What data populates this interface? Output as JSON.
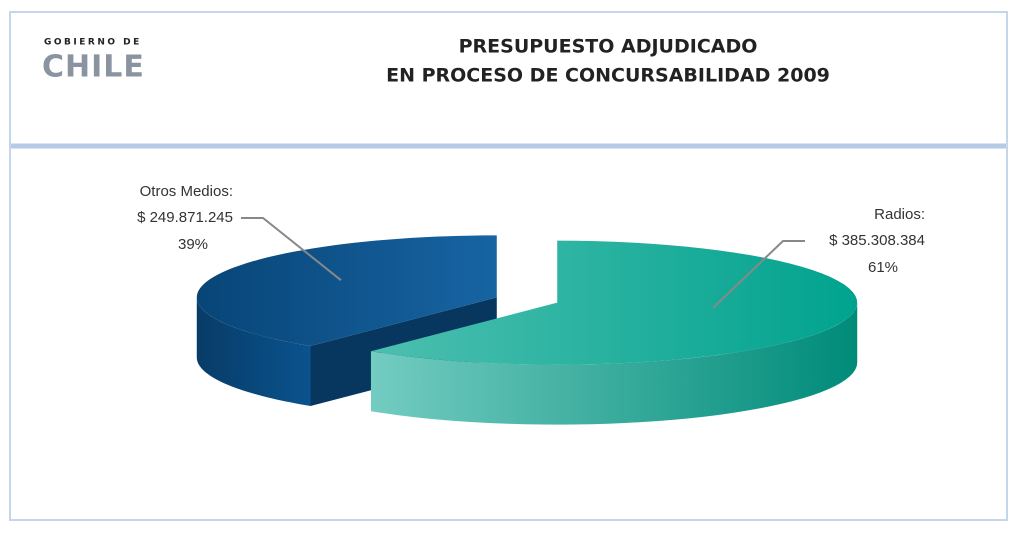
{
  "logo": {
    "line1": "GOBIERNO DE",
    "line2": "CHILE"
  },
  "chart_data": {
    "type": "pie3d",
    "title": [
      "PRESUPUESTO ADJUDICADO",
      "EN PROCESO DE CONCURSABILIDAD 2009"
    ],
    "categories": [
      "Radios:",
      "Otros Medios:"
    ],
    "values": [
      385308384,
      249871245
    ],
    "value_labels": [
      "$ 385.308.384",
      "$ 249.871.245"
    ],
    "percent_labels": [
      "61%",
      "39%"
    ],
    "colors": [
      "#00a38e",
      "#0b5c9e"
    ]
  }
}
